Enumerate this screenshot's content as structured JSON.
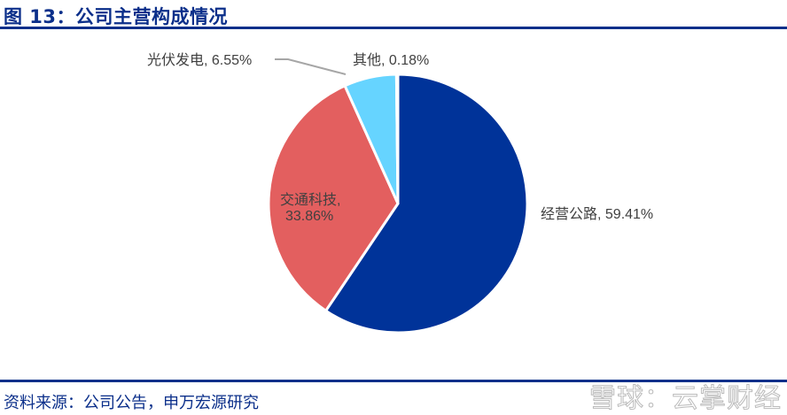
{
  "title": "图 13：公司主营构成情况",
  "source": "资料来源：公司公告，申万宏源研究",
  "watermark": "雪球：云掌财经",
  "labels": {
    "highway": "经营公路, 59.41%",
    "tech_line1": "交通科技,",
    "tech_line2": "33.86%",
    "solar": "光伏发电, 6.55%",
    "other": "其他, 0.18%"
  },
  "chart_data": {
    "type": "pie",
    "title": "公司主营构成情况",
    "categories": [
      "经营公路",
      "交通科技",
      "光伏发电",
      "其他"
    ],
    "values": [
      59.41,
      33.86,
      6.55,
      0.18
    ],
    "unit": "%",
    "colors": [
      "#003399",
      "#e35f5f",
      "#66d4ff",
      "#7f7f7f"
    ],
    "start_angle": "12 o'clock, clockwise",
    "legend": "none (data labels)"
  }
}
